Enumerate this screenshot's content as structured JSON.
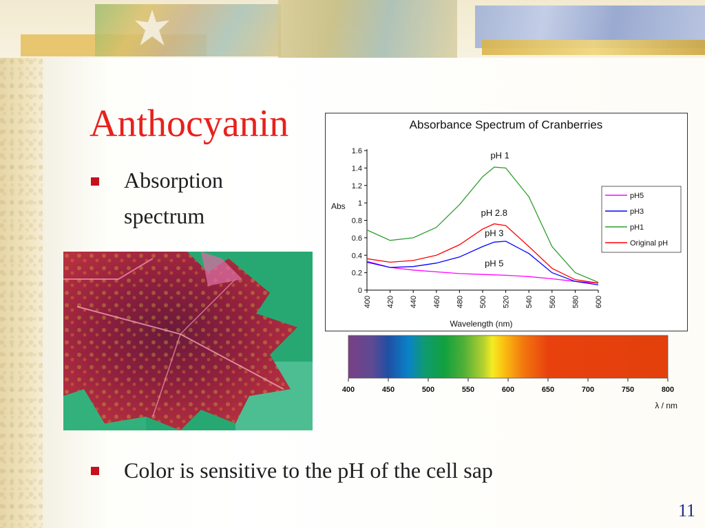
{
  "slide": {
    "title": "Anthocyanin",
    "bullets": [
      "Absorption",
      "spectrum",
      "Color is sensitive to the pH of the cell sap"
    ],
    "page_number": "11"
  },
  "colors": {
    "title": "#e8211d",
    "bullet": "#c4111d",
    "page_number": "#1f2a88"
  },
  "icons": {
    "bullet": "square-bullet-icon"
  },
  "chart_data": [
    {
      "type": "line",
      "title": "Absorbance Spectrum of Cranberries",
      "xlabel": "Wavelength (nm)",
      "ylabel": "Abs",
      "xlim": [
        400,
        600
      ],
      "ylim": [
        0,
        1.6
      ],
      "x_ticks": [
        400,
        420,
        440,
        460,
        480,
        500,
        520,
        540,
        560,
        580,
        600
      ],
      "y_ticks": [
        "0",
        "0.2",
        "0.4",
        "0.6",
        "0.8",
        "1",
        "1.2",
        "1.4",
        "1.6"
      ],
      "legend_position": "right",
      "x": [
        400,
        420,
        440,
        460,
        480,
        500,
        510,
        520,
        540,
        560,
        580,
        600
      ],
      "series": [
        {
          "name": "pH5",
          "color": "#ff00ff",
          "values": [
            0.33,
            0.26,
            0.23,
            0.21,
            0.19,
            0.18,
            0.175,
            0.17,
            0.155,
            0.13,
            0.1,
            0.08
          ]
        },
        {
          "name": "pH3",
          "color": "#0000ff",
          "values": [
            0.32,
            0.26,
            0.27,
            0.31,
            0.38,
            0.5,
            0.55,
            0.56,
            0.42,
            0.2,
            0.1,
            0.06
          ]
        },
        {
          "name": "pH1",
          "color": "#2e9d2e",
          "values": [
            0.69,
            0.57,
            0.6,
            0.72,
            0.98,
            1.3,
            1.41,
            1.4,
            1.07,
            0.5,
            0.2,
            0.09
          ]
        },
        {
          "name": "Original pH",
          "color": "#ff0000",
          "values": [
            0.36,
            0.32,
            0.34,
            0.4,
            0.52,
            0.7,
            0.76,
            0.74,
            0.5,
            0.25,
            0.12,
            0.08
          ]
        }
      ],
      "annotations": [
        "pH 1",
        "pH 2.8",
        "pH 3",
        "pH 5"
      ]
    },
    {
      "type": "heatmap",
      "xlabel": "λ / nm",
      "xlim": [
        400,
        800
      ],
      "x_ticks": [
        400,
        450,
        500,
        550,
        600,
        650,
        700,
        750,
        800
      ],
      "color_stops": [
        {
          "nm": 400,
          "color": "#7a3f86"
        },
        {
          "nm": 430,
          "color": "#5d4a93"
        },
        {
          "nm": 450,
          "color": "#1f4fa4"
        },
        {
          "nm": 475,
          "color": "#0a82c8"
        },
        {
          "nm": 495,
          "color": "#0f9a72"
        },
        {
          "nm": 520,
          "color": "#11a03e"
        },
        {
          "nm": 545,
          "color": "#52b038"
        },
        {
          "nm": 570,
          "color": "#b9d22f"
        },
        {
          "nm": 580,
          "color": "#f4ec22"
        },
        {
          "nm": 595,
          "color": "#fbbe11"
        },
        {
          "nm": 620,
          "color": "#f2750e"
        },
        {
          "nm": 650,
          "color": "#e8410e"
        },
        {
          "nm": 800,
          "color": "#e3400c"
        }
      ]
    }
  ]
}
